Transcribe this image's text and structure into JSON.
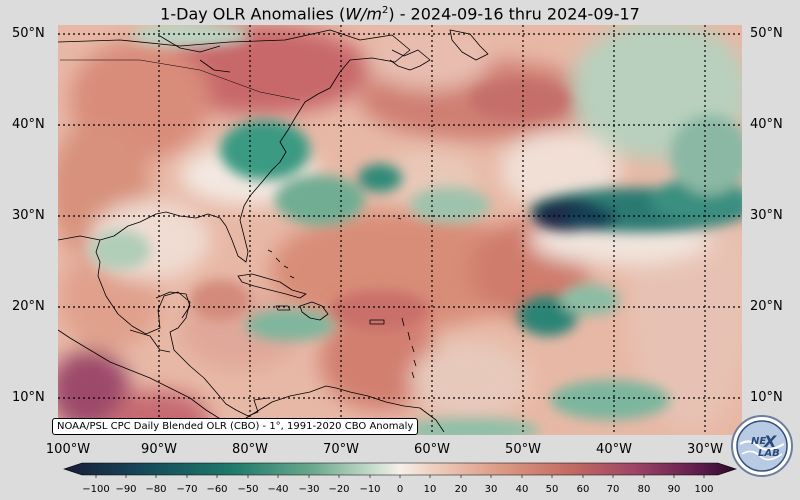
{
  "title": {
    "prefix": "1-Day OLR Anomalies (",
    "unit_base": "W/m",
    "unit_exp": "2",
    "suffix": ") - 2024-09-16 thru 2024-09-17"
  },
  "lat_labels": [
    "50°N",
    "40°N",
    "30°N",
    "20°N",
    "10°N"
  ],
  "lon_labels": [
    "100°W",
    "90°W",
    "80°W",
    "70°W",
    "60°W",
    "50°W",
    "40°W",
    "30°W"
  ],
  "credit": "NOAA/PSL CPC Daily Blended OLR (CBO) - 1°, 1991-2020 CBO Anomaly",
  "colorbar": {
    "ticks": [
      "−100",
      "−90",
      "−80",
      "−70",
      "−60",
      "−50",
      "−40",
      "−30",
      "−20",
      "−10",
      "0",
      "10",
      "20",
      "30",
      "40",
      "50",
      "60",
      "70",
      "80",
      "90",
      "100"
    ],
    "colors": {
      "min": "#1a1a3a",
      "teal_dark": "#0d5c5c",
      "teal": "#2e8b7a",
      "green_light": "#a8c9b0",
      "neutral": "#f6efe9",
      "salmon_light": "#eab8a8",
      "salmon": "#d88870",
      "red": "#b85c5a",
      "magenta": "#8a3a6a",
      "max": "#2a0a2a"
    }
  },
  "logo": {
    "text_top": "NE",
    "text_mid": "X",
    "text_bot": "LAB"
  }
}
